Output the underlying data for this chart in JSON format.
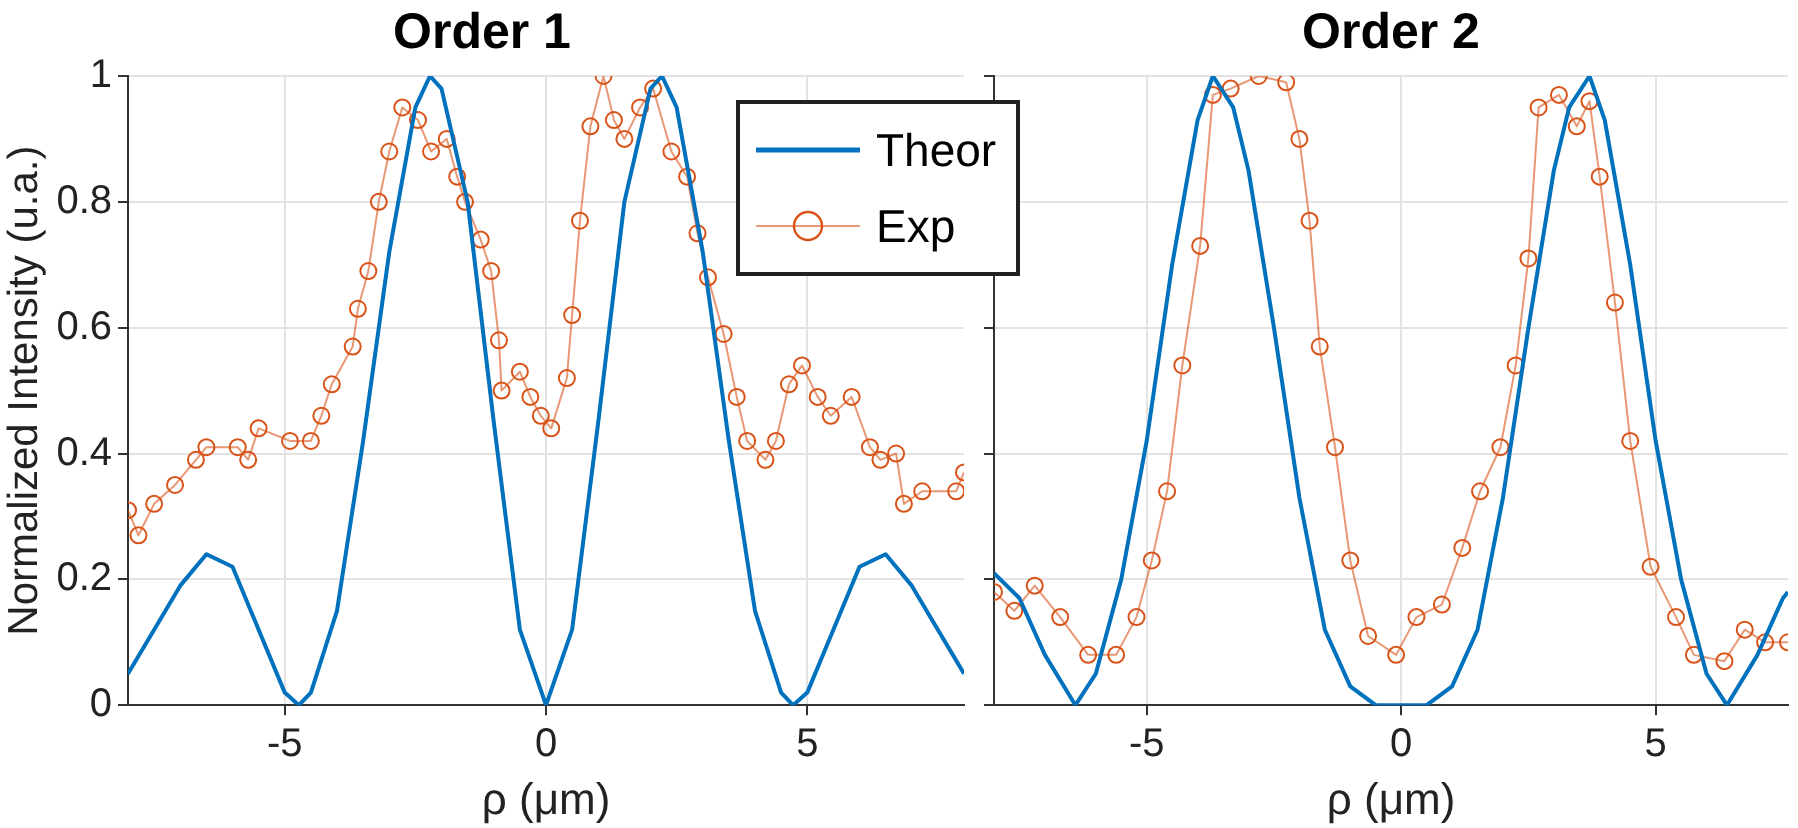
{
  "chart_data": [
    {
      "type": "line",
      "title": "Order 1",
      "xlabel": "ρ (μm)",
      "ylabel": "Normalized Intensity (u.a.)",
      "xlim": [
        -8,
        8
      ],
      "ylim": [
        0,
        1
      ],
      "xticks": [
        -5,
        0,
        5
      ],
      "yticks": [
        0,
        0.2,
        0.4,
        0.6,
        0.8,
        1
      ],
      "grid": true,
      "legend": "top right",
      "series": [
        {
          "name": "Theor",
          "color": "#0072bd",
          "marker": "none",
          "x": [
            -8,
            -7.5,
            -7,
            -6.5,
            -6,
            -5.5,
            -5,
            -4.73,
            -4.5,
            -4,
            -3.5,
            -3,
            -2.5,
            -2.22,
            -2,
            -1.5,
            -1,
            -0.5,
            0,
            0.5,
            1,
            1.5,
            2,
            2.22,
            2.5,
            3,
            3.5,
            4,
            4.5,
            4.73,
            5,
            5.5,
            6,
            6.5,
            7,
            7.5,
            8
          ],
          "values": [
            0.05,
            0.12,
            0.19,
            0.24,
            0.22,
            0.12,
            0.02,
            0,
            0.02,
            0.15,
            0.42,
            0.72,
            0.95,
            1,
            0.98,
            0.8,
            0.45,
            0.12,
            0,
            0.12,
            0.45,
            0.8,
            0.98,
            1,
            0.95,
            0.72,
            0.42,
            0.15,
            0.02,
            0,
            0.02,
            0.12,
            0.22,
            0.24,
            0.19,
            0.12,
            0.05
          ]
        },
        {
          "name": "Exp",
          "color": "#d95319",
          "marker": "circle",
          "x": [
            -8,
            -7.8,
            -7.5,
            -7.1,
            -6.7,
            -6.5,
            -5.9,
            -5.7,
            -5.5,
            -4.9,
            -4.5,
            -4.3,
            -4.1,
            -3.7,
            -3.6,
            -3.4,
            -3.2,
            -3,
            -2.75,
            -2.45,
            -2.2,
            -1.9,
            -1.7,
            -1.55,
            -1.25,
            -1.05,
            -0.9,
            -0.85,
            -0.5,
            -0.3,
            -0.1,
            0.1,
            0.4,
            0.5,
            0.65,
            0.85,
            1.1,
            1.3,
            1.5,
            1.8,
            2.05,
            2.4,
            2.7,
            2.9,
            3.1,
            3.4,
            3.65,
            3.85,
            4.2,
            4.4,
            4.65,
            4.9,
            5.2,
            5.45,
            5.85,
            6.2,
            6.4,
            6.7,
            6.85,
            7.2,
            7.85,
            8
          ],
          "values": [
            0.31,
            0.27,
            0.32,
            0.35,
            0.39,
            0.41,
            0.41,
            0.39,
            0.44,
            0.42,
            0.42,
            0.46,
            0.51,
            0.57,
            0.63,
            0.69,
            0.8,
            0.88,
            0.95,
            0.93,
            0.88,
            0.9,
            0.84,
            0.8,
            0.74,
            0.69,
            0.58,
            0.5,
            0.53,
            0.49,
            0.46,
            0.44,
            0.52,
            0.62,
            0.77,
            0.92,
            1,
            0.93,
            0.9,
            0.95,
            0.98,
            0.88,
            0.84,
            0.75,
            0.68,
            0.59,
            0.49,
            0.42,
            0.39,
            0.42,
            0.51,
            0.54,
            0.49,
            0.46,
            0.49,
            0.41,
            0.39,
            0.4,
            0.32,
            0.34,
            0.34,
            0.37
          ]
        }
      ]
    },
    {
      "type": "line",
      "title": "Order 2",
      "xlabel": "ρ (μm)",
      "xlim": [
        -8,
        7.6
      ],
      "ylim": [
        0,
        1
      ],
      "xticks": [
        -5,
        0,
        5
      ],
      "yticks": [
        0,
        0.2,
        0.4,
        0.6,
        0.8,
        1
      ],
      "grid": true,
      "tick_labels": "x",
      "series": [
        {
          "color": "#0072bd",
          "marker": "none",
          "x": [
            -8,
            -7.5,
            -7,
            -6.4,
            -6,
            -5.5,
            -5,
            -4.5,
            -4,
            -3.7,
            -3.3,
            -3,
            -2.5,
            -2,
            -1.5,
            -1,
            -0.5,
            0,
            0.5,
            1,
            1.5,
            2,
            2.5,
            3,
            3.3,
            3.7,
            4,
            4.5,
            5,
            5.5,
            6,
            6.4,
            7,
            7.5,
            7.6
          ],
          "values": [
            0.21,
            0.17,
            0.08,
            0,
            0.05,
            0.2,
            0.42,
            0.7,
            0.93,
            1,
            0.95,
            0.85,
            0.6,
            0.33,
            0.12,
            0.03,
            0,
            0,
            0,
            0.03,
            0.12,
            0.33,
            0.6,
            0.85,
            0.95,
            1,
            0.93,
            0.7,
            0.42,
            0.2,
            0.05,
            0,
            0.08,
            0.17,
            0.18
          ]
        },
        {
          "color": "#d95319",
          "marker": "circle",
          "x": [
            -8,
            -7.6,
            -7.2,
            -6.7,
            -6.15,
            -5.6,
            -5.2,
            -4.9,
            -4.6,
            -4.3,
            -3.95,
            -3.7,
            -3.35,
            -2.8,
            -2.26,
            -2,
            -1.8,
            -1.6,
            -1.3,
            -1,
            -0.65,
            -0.1,
            0.3,
            0.8,
            1.2,
            1.55,
            1.95,
            2.25,
            2.5,
            2.7,
            3.1,
            3.45,
            3.7,
            3.9,
            4.2,
            4.5,
            4.9,
            5.4,
            5.75,
            6.35,
            6.75,
            7.15,
            7.6
          ],
          "values": [
            0.18,
            0.15,
            0.19,
            0.14,
            0.08,
            0.08,
            0.14,
            0.23,
            0.34,
            0.54,
            0.73,
            0.97,
            0.98,
            1,
            0.99,
            0.9,
            0.77,
            0.57,
            0.41,
            0.23,
            0.11,
            0.08,
            0.14,
            0.16,
            0.25,
            0.34,
            0.41,
            0.54,
            0.71,
            0.95,
            0.97,
            0.92,
            0.96,
            0.84,
            0.64,
            0.42,
            0.22,
            0.14,
            0.08,
            0.07,
            0.12,
            0.1,
            0.1
          ]
        }
      ]
    }
  ]
}
